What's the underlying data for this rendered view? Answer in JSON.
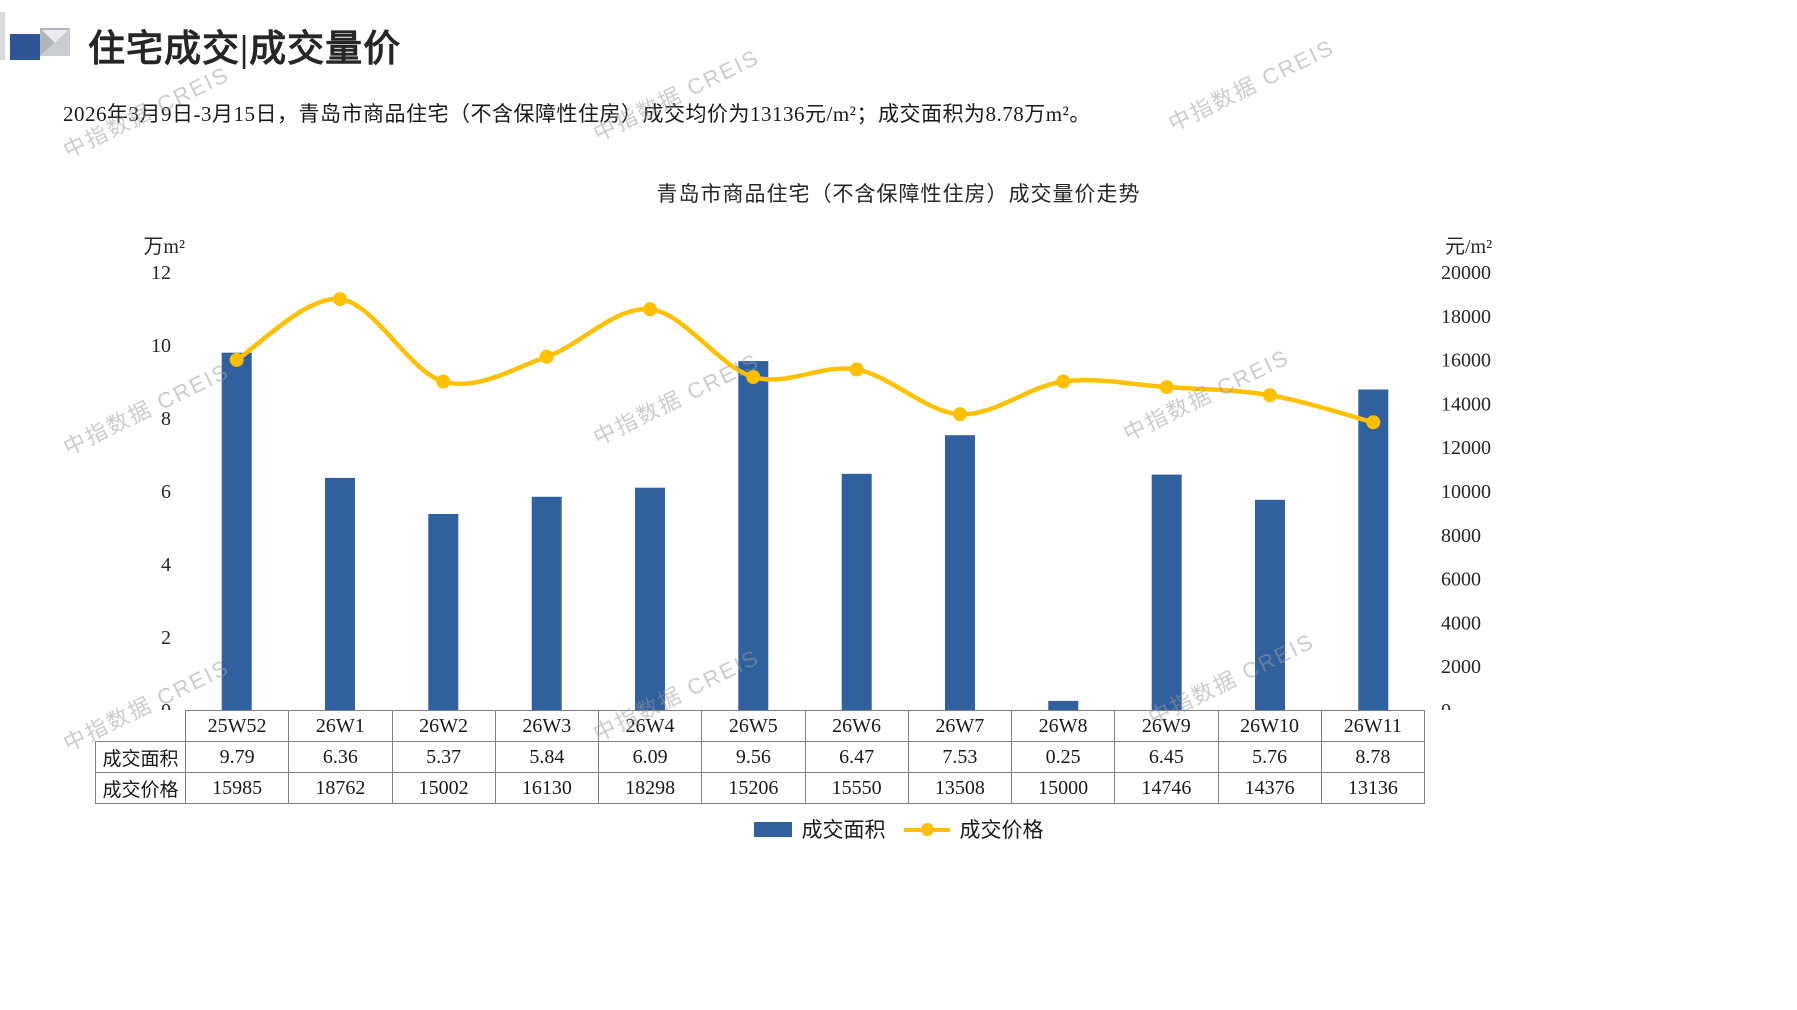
{
  "header": {
    "title": "住宅成交|成交量价",
    "subtitle": "2026年3月9日-3月15日，青岛市商品住宅（不含保障性住房）成交均价为13136元/m²；成交面积为8.78万m²。"
  },
  "watermark": "中指数据 CREIS",
  "chart_data": {
    "type": "bar",
    "combo": "bar+line",
    "title": "青岛市商品住宅（不含保障性住房）成交量价走势",
    "categories": [
      "25W52",
      "26W1",
      "26W2",
      "26W3",
      "26W4",
      "26W5",
      "26W6",
      "26W7",
      "26W8",
      "26W9",
      "26W10",
      "26W11"
    ],
    "series": [
      {
        "name": "成交面积",
        "type": "bar",
        "axis": "left",
        "color": "#31609F",
        "values": [
          9.79,
          6.36,
          5.37,
          5.84,
          6.09,
          9.56,
          6.47,
          7.53,
          0.25,
          6.45,
          5.76,
          8.78
        ]
      },
      {
        "name": "成交价格",
        "type": "line",
        "axis": "right",
        "color": "#FFC000",
        "values": [
          15985,
          18762,
          15002,
          16130,
          18298,
          15206,
          15550,
          13508,
          15000,
          14746,
          14376,
          13136
        ]
      }
    ],
    "left_axis": {
      "label": "万m²",
      "min": 0,
      "max": 12,
      "step": 2
    },
    "right_axis": {
      "label": "元/m²",
      "min": 0,
      "max": 20000,
      "step": 2000
    },
    "grid": false,
    "legend_position": "bottom"
  },
  "table": {
    "rows": [
      {
        "label": "成交面积",
        "values": [
          "9.79",
          "6.36",
          "5.37",
          "5.84",
          "6.09",
          "9.56",
          "6.47",
          "7.53",
          "0.25",
          "6.45",
          "5.76",
          "8.78"
        ]
      },
      {
        "label": "成交价格",
        "values": [
          "15985",
          "18762",
          "15002",
          "16130",
          "18298",
          "15206",
          "15550",
          "13508",
          "15000",
          "14746",
          "14376",
          "13136"
        ]
      }
    ]
  }
}
